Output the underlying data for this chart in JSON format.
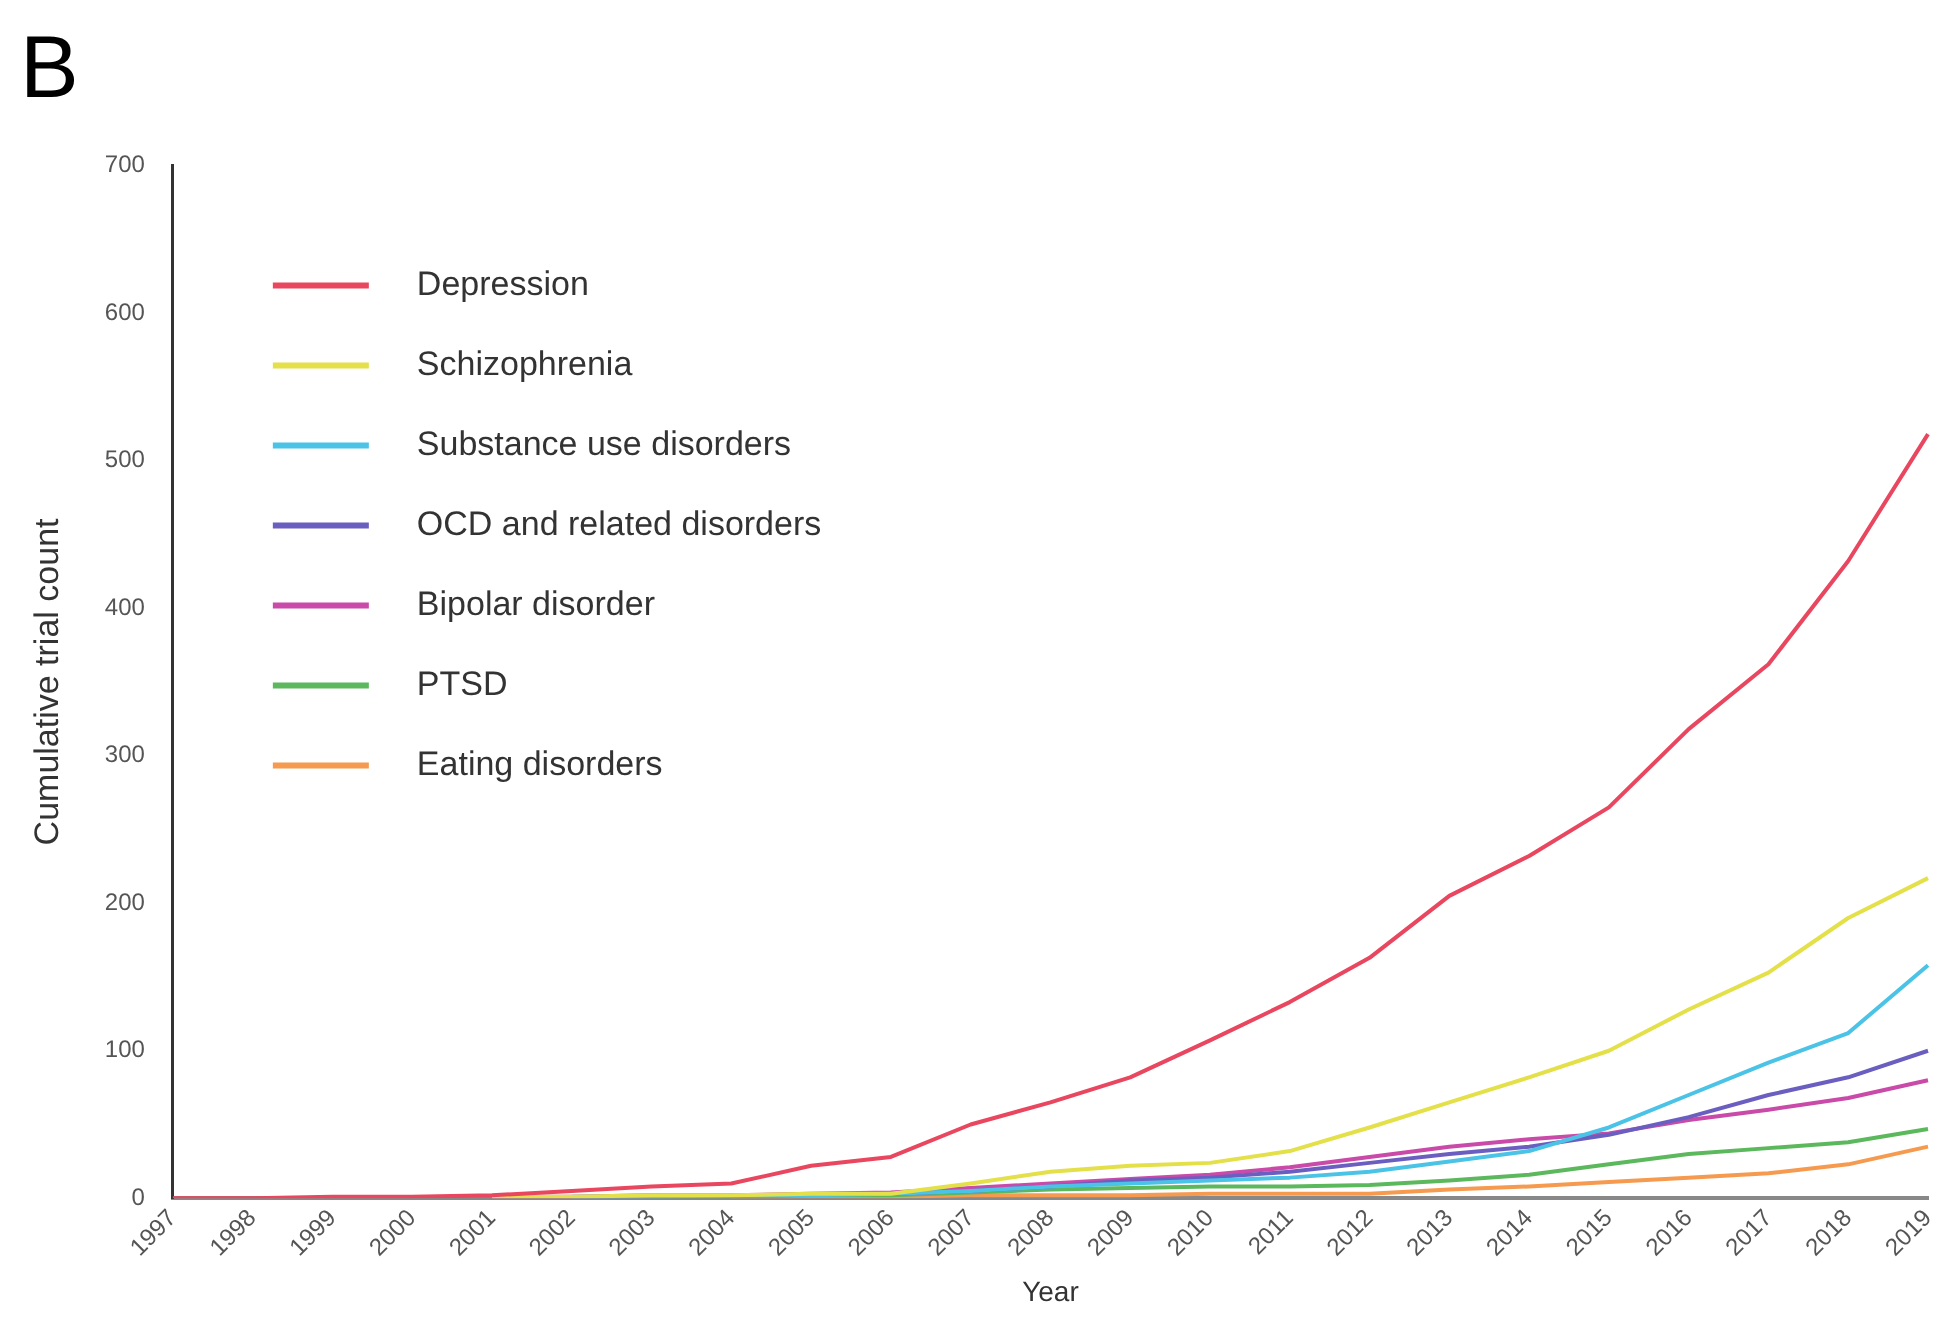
{
  "chart_data": {
    "type": "line",
    "title": "B",
    "xlabel": "Year",
    "ylabel": "Cumulative trial count",
    "categories": [
      "1997",
      "1998",
      "1999",
      "2000",
      "2001",
      "2002",
      "2003",
      "2004",
      "2005",
      "2006",
      "2007",
      "2008",
      "2009",
      "2010",
      "2011",
      "2012",
      "2013",
      "2014",
      "2015",
      "2016",
      "2017",
      "2018",
      "2019"
    ],
    "ylim": [
      0,
      700
    ],
    "yticks": [
      0,
      100,
      200,
      300,
      400,
      500,
      600,
      700
    ],
    "grid": false,
    "legend": "top left",
    "marker": "none",
    "line_style": "solid",
    "series": [
      {
        "name": "Depression",
        "color": "#e8475f",
        "values": [
          0,
          0,
          1,
          1,
          2,
          5,
          8,
          10,
          22,
          28,
          50,
          65,
          82,
          107,
          133,
          163,
          205,
          232,
          265,
          318,
          362,
          432,
          518
        ]
      },
      {
        "name": "Schizophrenia",
        "color": "#e3e04a",
        "values": [
          null,
          null,
          null,
          null,
          1,
          1,
          2,
          2,
          3,
          3,
          10,
          18,
          22,
          24,
          32,
          48,
          65,
          82,
          100,
          128,
          153,
          190,
          217
        ]
      },
      {
        "name": "Substance use disorders",
        "color": "#4bc3e6",
        "values": [
          null,
          null,
          null,
          null,
          null,
          1,
          1,
          2,
          2,
          3,
          5,
          8,
          10,
          12,
          14,
          18,
          25,
          32,
          48,
          70,
          92,
          112,
          158
        ]
      },
      {
        "name": "OCD and related disorders",
        "color": "#6a5fc0",
        "values": [
          null,
          null,
          null,
          null,
          null,
          null,
          null,
          null,
          null,
          3,
          5,
          8,
          12,
          14,
          18,
          24,
          30,
          35,
          43,
          55,
          70,
          82,
          100
        ]
      },
      {
        "name": "Bipolar disorder",
        "color": "#c94aa8",
        "values": [
          null,
          null,
          null,
          null,
          1,
          1,
          2,
          2,
          3,
          4,
          7,
          10,
          13,
          16,
          21,
          28,
          35,
          40,
          44,
          53,
          60,
          68,
          80
        ]
      },
      {
        "name": "PTSD",
        "color": "#5cb85c",
        "values": [
          null,
          null,
          null,
          null,
          null,
          null,
          1,
          1,
          2,
          2,
          4,
          6,
          7,
          8,
          8,
          9,
          12,
          16,
          23,
          30,
          34,
          38,
          47
        ]
      },
      {
        "name": "Eating disorders",
        "color": "#f59a4e",
        "values": [
          null,
          null,
          null,
          null,
          null,
          null,
          null,
          1,
          1,
          1,
          2,
          2,
          2,
          3,
          3,
          3,
          6,
          8,
          11,
          14,
          17,
          23,
          35
        ]
      }
    ]
  }
}
